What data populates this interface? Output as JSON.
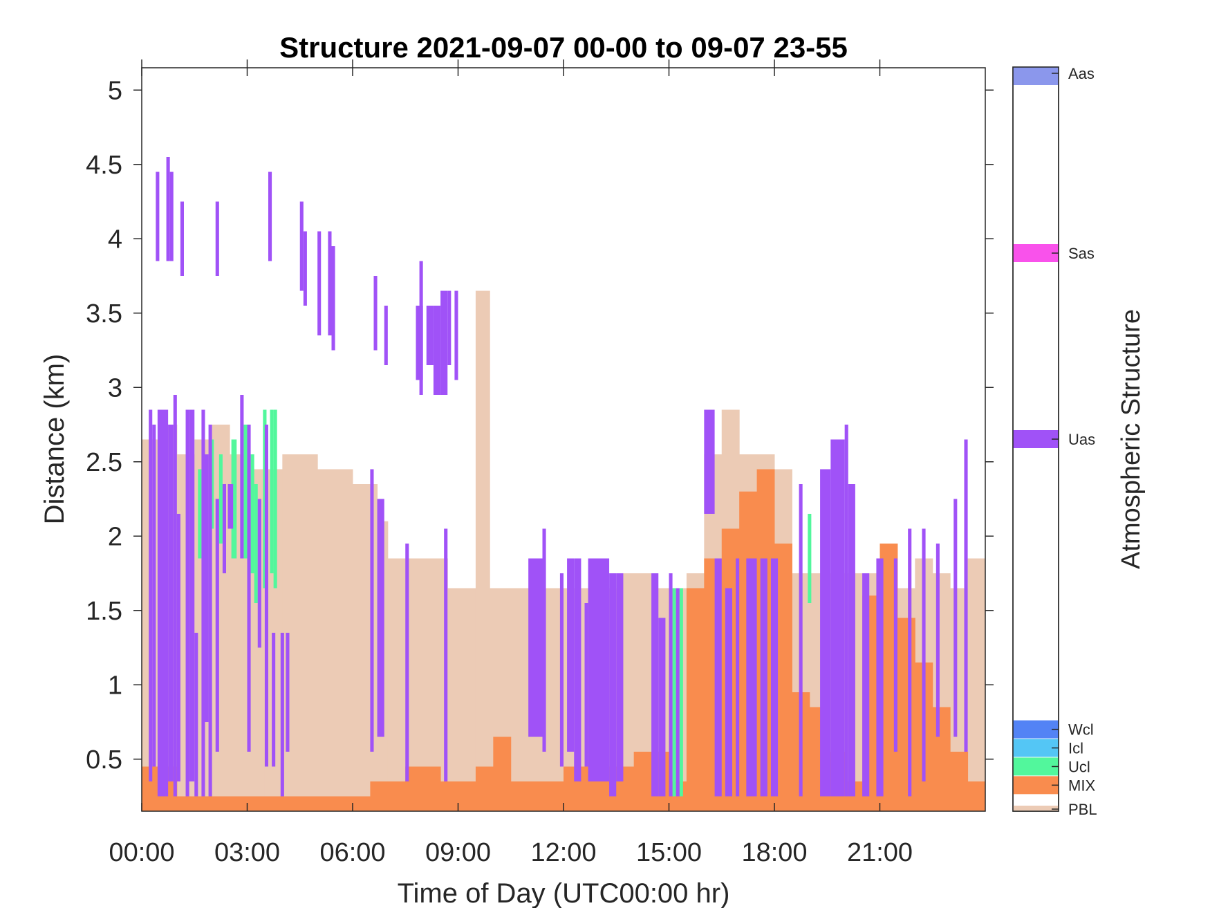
{
  "chart_data": {
    "type": "heatmap",
    "title": "Structure 2021-09-07 00-00 to 09-07 23-55",
    "xlabel": "Time of Day (UTC00:00 hr)",
    "ylabel": "Distance (km)",
    "xlim_hours": [
      0,
      24
    ],
    "ylim_km": [
      0.15,
      5.15
    ],
    "x_ticks": [
      {
        "value": 0,
        "label": "00:00"
      },
      {
        "value": 3,
        "label": "03:00"
      },
      {
        "value": 6,
        "label": "06:00"
      },
      {
        "value": 9,
        "label": "09:00"
      },
      {
        "value": 12,
        "label": "12:00"
      },
      {
        "value": 15,
        "label": "15:00"
      },
      {
        "value": 18,
        "label": "18:00"
      },
      {
        "value": 21,
        "label": "21:00"
      }
    ],
    "y_ticks": [
      {
        "value": 0.5,
        "label": "0.5"
      },
      {
        "value": 1,
        "label": "1"
      },
      {
        "value": 1.5,
        "label": "1.5"
      },
      {
        "value": 2,
        "label": "2"
      },
      {
        "value": 2.5,
        "label": "2.5"
      },
      {
        "value": 3,
        "label": "3"
      },
      {
        "value": 3.5,
        "label": "3.5"
      },
      {
        "value": 4,
        "label": "4"
      },
      {
        "value": 4.5,
        "label": "4.5"
      },
      {
        "value": 5,
        "label": "5"
      }
    ],
    "colorbar": {
      "label": "Atmospheric Structure",
      "categories": [
        {
          "name": "PBL",
          "color": "#ECCBB5",
          "level": 0.01
        },
        {
          "name": "MIX",
          "color": "#F98C4E",
          "level": 0.035
        },
        {
          "name": "Ucl",
          "color": "#52F79C",
          "level": 0.06
        },
        {
          "name": "Icl",
          "color": "#54C6F5",
          "level": 0.085
        },
        {
          "name": "Wcl",
          "color": "#5383F5",
          "level": 0.11
        },
        {
          "name": "Uas",
          "color": "#A052F7",
          "level": 0.5
        },
        {
          "name": "Sas",
          "color": "#F952EB",
          "level": 0.75
        },
        {
          "name": "Aas",
          "color": "#8B97EC",
          "level": 1.0
        }
      ]
    },
    "pbl_top_km": [
      [
        0,
        2.65
      ],
      [
        0.5,
        2.75
      ],
      [
        1.0,
        2.55
      ],
      [
        1.5,
        2.65
      ],
      [
        2.0,
        2.75
      ],
      [
        2.5,
        2.55
      ],
      [
        3.0,
        2.45
      ],
      [
        3.5,
        2.45
      ],
      [
        4.0,
        2.55
      ],
      [
        5.0,
        2.45
      ],
      [
        6.0,
        2.35
      ],
      [
        6.7,
        2.1
      ],
      [
        7.0,
        1.85
      ],
      [
        8.0,
        1.85
      ],
      [
        8.7,
        1.65
      ],
      [
        9.2,
        1.65
      ],
      [
        9.5,
        3.65
      ],
      [
        9.9,
        1.65
      ],
      [
        11.0,
        1.65
      ],
      [
        11.5,
        1.65
      ],
      [
        12.0,
        1.65
      ],
      [
        13.0,
        1.65
      ],
      [
        13.5,
        1.75
      ],
      [
        14.5,
        1.65
      ],
      [
        15.5,
        1.75
      ],
      [
        16.0,
        2.55
      ],
      [
        16.5,
        2.85
      ],
      [
        17.0,
        2.55
      ],
      [
        18.0,
        2.45
      ],
      [
        18.5,
        1.75
      ],
      [
        19.5,
        1.75
      ],
      [
        20.0,
        1.75
      ],
      [
        21.0,
        1.65
      ],
      [
        22.0,
        1.85
      ],
      [
        22.5,
        1.75
      ],
      [
        23.0,
        1.65
      ],
      [
        23.5,
        1.85
      ],
      [
        24.0,
        2.05
      ]
    ],
    "mix_top_km": [
      [
        0,
        0.45
      ],
      [
        1,
        0.25
      ],
      [
        2,
        0.25
      ],
      [
        3,
        0.25
      ],
      [
        6.5,
        0.35
      ],
      [
        7.5,
        0.45
      ],
      [
        8.5,
        0.35
      ],
      [
        9.5,
        0.45
      ],
      [
        10,
        0.65
      ],
      [
        10.5,
        0.35
      ],
      [
        12,
        0.45
      ],
      [
        13,
        0.45
      ],
      [
        14,
        0.55
      ],
      [
        15,
        0.35
      ],
      [
        15.5,
        1.65
      ],
      [
        16,
        1.85
      ],
      [
        16.5,
        2.05
      ],
      [
        17,
        2.3
      ],
      [
        17.5,
        2.45
      ],
      [
        18,
        1.95
      ],
      [
        18.5,
        0.95
      ],
      [
        19,
        0.85
      ],
      [
        19.5,
        0.55
      ],
      [
        20,
        0.35
      ],
      [
        20.5,
        1.6
      ],
      [
        21,
        1.95
      ],
      [
        21.5,
        1.45
      ],
      [
        22,
        1.15
      ],
      [
        22.5,
        0.85
      ],
      [
        23,
        0.55
      ],
      [
        23.5,
        0.35
      ],
      [
        24,
        0.45
      ]
    ],
    "uas_segments_km": [
      [
        0.2,
        0.3,
        0.35,
        2.85
      ],
      [
        0.3,
        0.4,
        0.45,
        2.75
      ],
      [
        0.45,
        0.75,
        0.25,
        2.85
      ],
      [
        0.75,
        0.9,
        0.35,
        2.75
      ],
      [
        0.9,
        1.0,
        0.25,
        2.95
      ],
      [
        1.0,
        1.1,
        0.35,
        2.15
      ],
      [
        1.25,
        1.35,
        0.25,
        2.85
      ],
      [
        1.35,
        1.5,
        0.35,
        2.85
      ],
      [
        1.5,
        1.6,
        0.25,
        1.35
      ],
      [
        1.7,
        1.8,
        0.25,
        2.85
      ],
      [
        1.8,
        1.9,
        0.75,
        2.55
      ],
      [
        1.9,
        2.0,
        0.25,
        2.75
      ],
      [
        2.1,
        2.2,
        0.55,
        2.25
      ],
      [
        2.3,
        2.4,
        1.75,
        2.35
      ],
      [
        2.45,
        2.6,
        2.05,
        2.35
      ],
      [
        2.8,
        2.9,
        1.85,
        2.95
      ],
      [
        3.0,
        3.1,
        0.55,
        2.75
      ],
      [
        3.3,
        3.4,
        1.25,
        2.25
      ],
      [
        3.5,
        3.6,
        0.45,
        2.75
      ],
      [
        3.7,
        3.8,
        0.45,
        1.35
      ],
      [
        3.95,
        4.05,
        0.25,
        1.35
      ],
      [
        4.1,
        4.2,
        0.55,
        1.35
      ],
      [
        0.4,
        0.5,
        3.85,
        4.45
      ],
      [
        0.7,
        0.8,
        3.85,
        4.55
      ],
      [
        0.8,
        0.9,
        3.85,
        4.45
      ],
      [
        1.1,
        1.2,
        3.75,
        4.25
      ],
      [
        2.1,
        2.2,
        3.75,
        4.25
      ],
      [
        3.6,
        3.7,
        3.85,
        4.45
      ],
      [
        4.5,
        4.6,
        3.65,
        4.25
      ],
      [
        4.6,
        4.7,
        3.55,
        4.05
      ],
      [
        5.0,
        5.1,
        3.35,
        4.05
      ],
      [
        5.3,
        5.4,
        3.35,
        4.05
      ],
      [
        5.4,
        5.5,
        3.25,
        3.95
      ],
      [
        6.6,
        6.7,
        3.25,
        3.75
      ],
      [
        6.9,
        7.0,
        3.15,
        3.55
      ],
      [
        7.8,
        8.0,
        3.05,
        3.55
      ],
      [
        7.9,
        8.0,
        2.95,
        3.85
      ],
      [
        8.1,
        8.3,
        3.15,
        3.55
      ],
      [
        8.3,
        8.5,
        2.95,
        3.55
      ],
      [
        8.5,
        8.7,
        2.95,
        3.65
      ],
      [
        8.7,
        8.8,
        3.15,
        3.65
      ],
      [
        8.9,
        9.0,
        3.05,
        3.65
      ],
      [
        6.5,
        6.6,
        0.55,
        2.45
      ],
      [
        6.7,
        6.9,
        0.65,
        2.25
      ],
      [
        7.5,
        7.6,
        0.35,
        1.95
      ],
      [
        8.6,
        8.7,
        0.35,
        2.05
      ],
      [
        11.0,
        11.4,
        0.65,
        1.85
      ],
      [
        11.4,
        11.5,
        0.55,
        2.05
      ],
      [
        11.9,
        12.0,
        0.45,
        1.75
      ],
      [
        12.1,
        12.3,
        0.55,
        1.85
      ],
      [
        12.3,
        12.5,
        0.35,
        1.85
      ],
      [
        12.6,
        12.7,
        0.45,
        1.55
      ],
      [
        12.7,
        13.3,
        0.35,
        1.85
      ],
      [
        13.3,
        13.5,
        0.25,
        1.75
      ],
      [
        13.5,
        13.7,
        0.35,
        1.75
      ],
      [
        14.5,
        14.7,
        0.25,
        1.75
      ],
      [
        14.7,
        14.9,
        0.25,
        1.45
      ],
      [
        15.0,
        15.1,
        0.25,
        1.75
      ],
      [
        15.2,
        15.3,
        0.25,
        1.65
      ],
      [
        16.0,
        16.3,
        2.15,
        2.85
      ],
      [
        16.3,
        16.5,
        0.25,
        1.85
      ],
      [
        16.6,
        16.8,
        0.25,
        1.65
      ],
      [
        16.9,
        17.0,
        0.25,
        1.85
      ],
      [
        17.2,
        17.5,
        0.25,
        1.85
      ],
      [
        17.6,
        17.8,
        0.25,
        1.85
      ],
      [
        17.9,
        18.1,
        0.25,
        1.85
      ],
      [
        18.7,
        18.8,
        0.25,
        2.35
      ],
      [
        19.3,
        19.6,
        0.25,
        2.45
      ],
      [
        19.6,
        20.0,
        0.25,
        2.65
      ],
      [
        20.0,
        20.1,
        0.25,
        2.75
      ],
      [
        20.1,
        20.3,
        0.25,
        2.35
      ],
      [
        20.5,
        20.7,
        0.25,
        1.75
      ],
      [
        20.9,
        21.1,
        0.25,
        1.85
      ],
      [
        21.4,
        21.5,
        0.55,
        1.85
      ],
      [
        21.8,
        21.9,
        0.25,
        2.05
      ],
      [
        22.2,
        22.3,
        0.35,
        2.05
      ],
      [
        22.6,
        22.7,
        0.65,
        1.95
      ],
      [
        23.1,
        23.2,
        0.65,
        2.25
      ],
      [
        23.4,
        23.5,
        0.55,
        2.65
      ]
    ],
    "ucl_segments_km": [
      [
        1.6,
        1.7,
        1.85,
        2.45
      ],
      [
        1.95,
        2.05,
        2.05,
        2.65
      ],
      [
        2.2,
        2.3,
        1.95,
        2.55
      ],
      [
        2.55,
        2.7,
        1.85,
        2.65
      ],
      [
        2.9,
        3.0,
        1.85,
        2.75
      ],
      [
        3.1,
        3.2,
        1.75,
        2.55
      ],
      [
        3.2,
        3.3,
        1.55,
        2.35
      ],
      [
        3.45,
        3.55,
        1.65,
        2.85
      ],
      [
        3.65,
        3.75,
        1.75,
        2.85
      ],
      [
        3.75,
        3.85,
        1.65,
        2.85
      ],
      [
        15.1,
        15.2,
        0.25,
        1.65
      ],
      [
        15.3,
        15.4,
        0.25,
        1.65
      ],
      [
        18.95,
        19.05,
        1.55,
        2.15
      ]
    ]
  }
}
